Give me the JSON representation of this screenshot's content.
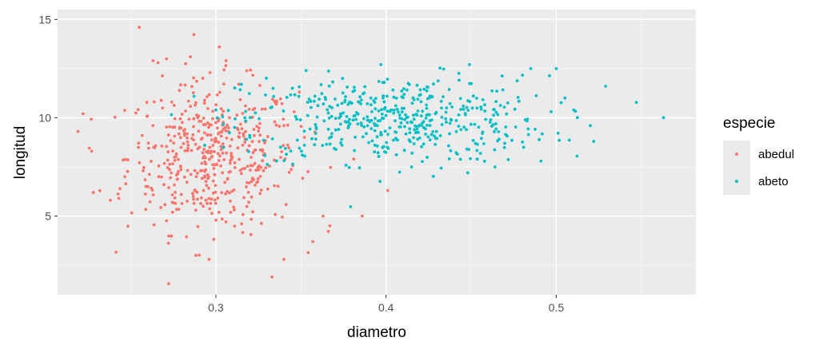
{
  "chart_data": {
    "type": "scatter",
    "xlabel": "diametro",
    "ylabel": "longitud",
    "xlim": [
      0.207,
      0.582
    ],
    "ylim": [
      1.0,
      15.5
    ],
    "x_ticks": [
      {
        "value": 0.3,
        "label": "0.3"
      },
      {
        "value": 0.4,
        "label": "0.4"
      },
      {
        "value": 0.5,
        "label": "0.5"
      }
    ],
    "x_minor_ticks": [
      0.25,
      0.35,
      0.45,
      0.55
    ],
    "y_ticks": [
      {
        "value": 5,
        "label": "5"
      },
      {
        "value": 10,
        "label": "10"
      },
      {
        "value": 15,
        "label": "15"
      }
    ],
    "y_minor_ticks": [
      2.5,
      7.5,
      12.5
    ],
    "grid": true,
    "background": "#ebebeb",
    "legend": {
      "title": "especie",
      "position": "right"
    },
    "series": [
      {
        "name": "abedul",
        "color": "#f8766d",
        "n_points": 500,
        "x_mean": 0.298,
        "x_sd": 0.025,
        "y_mean": 8.0,
        "y_sd": 1.9,
        "points": [
          [
            0.255,
            14.6
          ],
          [
            0.302,
            13.6
          ],
          [
            0.285,
            13.1
          ],
          [
            0.306,
            12.9
          ],
          [
            0.271,
            13.0
          ],
          [
            0.266,
            12.8
          ],
          [
            0.263,
            12.9
          ],
          [
            0.222,
            10.2
          ],
          [
            0.219,
            9.3
          ],
          [
            0.227,
            8.3
          ],
          [
            0.228,
            6.2
          ],
          [
            0.238,
            5.8
          ],
          [
            0.243,
            5.9
          ],
          [
            0.333,
            1.9
          ],
          [
            0.34,
            2.8
          ],
          [
            0.296,
            2.8
          ],
          [
            0.381,
            7.9
          ],
          [
            0.386,
            5.0
          ],
          [
            0.401,
            6.3
          ],
          [
            0.357,
            3.7
          ],
          [
            0.367,
            4.5
          ],
          [
            0.363,
            5.0
          ],
          [
            0.346,
            10.3
          ],
          [
            0.34,
            9.6
          ],
          [
            0.352,
            9.0
          ]
        ]
      },
      {
        "name": "abeto",
        "color": "#00bfc4",
        "n_points": 500,
        "x_mean": 0.405,
        "x_sd": 0.045,
        "y_mean": 9.9,
        "y_sd": 1.1,
        "points": [
          [
            0.563,
            10.0
          ],
          [
            0.529,
            11.6
          ],
          [
            0.52,
            9.6
          ],
          [
            0.522,
            8.8
          ],
          [
            0.5,
            12.5
          ],
          [
            0.491,
            7.8
          ],
          [
            0.448,
            7.2
          ],
          [
            0.464,
            7.5
          ],
          [
            0.415,
            7.5
          ],
          [
            0.449,
            12.7
          ],
          [
            0.397,
            12.7
          ],
          [
            0.353,
            12.4
          ],
          [
            0.315,
            11.7
          ],
          [
            0.317,
            10.0
          ],
          [
            0.32,
            9.0
          ],
          [
            0.318,
            8.9
          ],
          [
            0.338,
            8.5
          ],
          [
            0.352,
            8.6
          ],
          [
            0.3,
            10.4
          ],
          [
            0.485,
            12.5
          ]
        ]
      }
    ]
  }
}
